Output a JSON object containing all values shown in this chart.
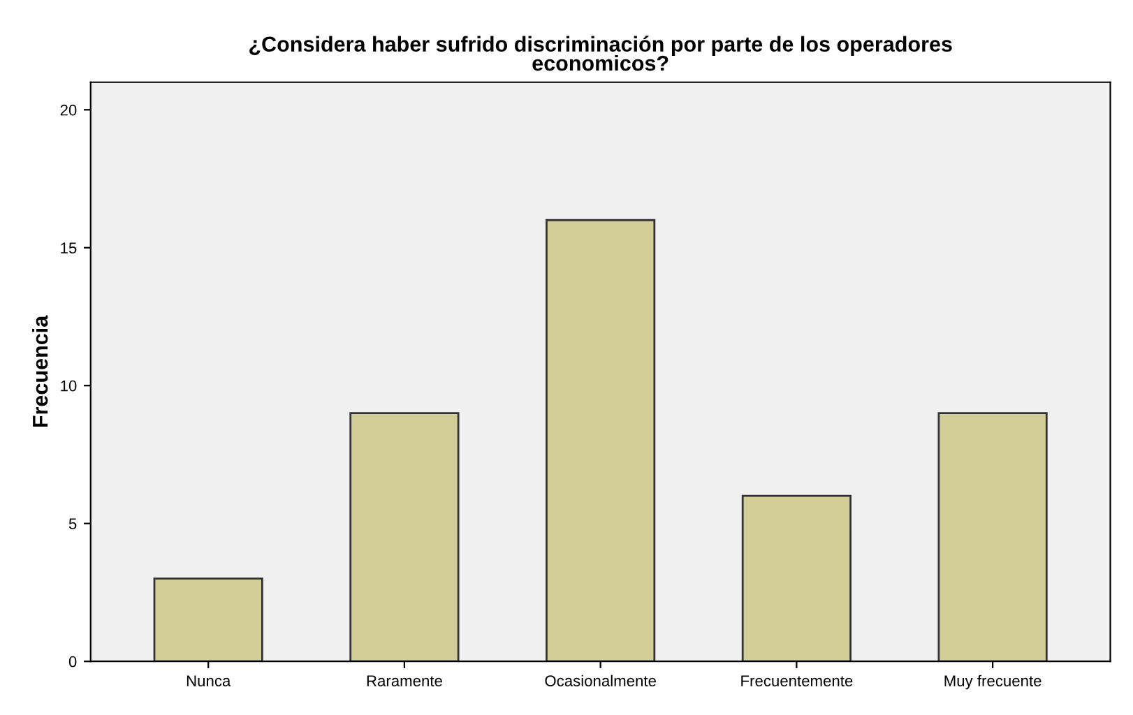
{
  "chart_data": {
    "type": "bar",
    "title": "¿Considera haber sufrido discriminación por parte de los operadores\neconomicos?",
    "ylabel": "Frecuencia",
    "categories": [
      "Nunca",
      "Raramente",
      "Ocasionalmente",
      "Frecuentemente",
      "Muy frecuente"
    ],
    "values": [
      3,
      9,
      16,
      6,
      9
    ],
    "color": "#d3ce97",
    "ylim": [
      0,
      21
    ],
    "yticks": [
      0,
      5,
      10,
      15,
      20
    ],
    "grid": false
  }
}
